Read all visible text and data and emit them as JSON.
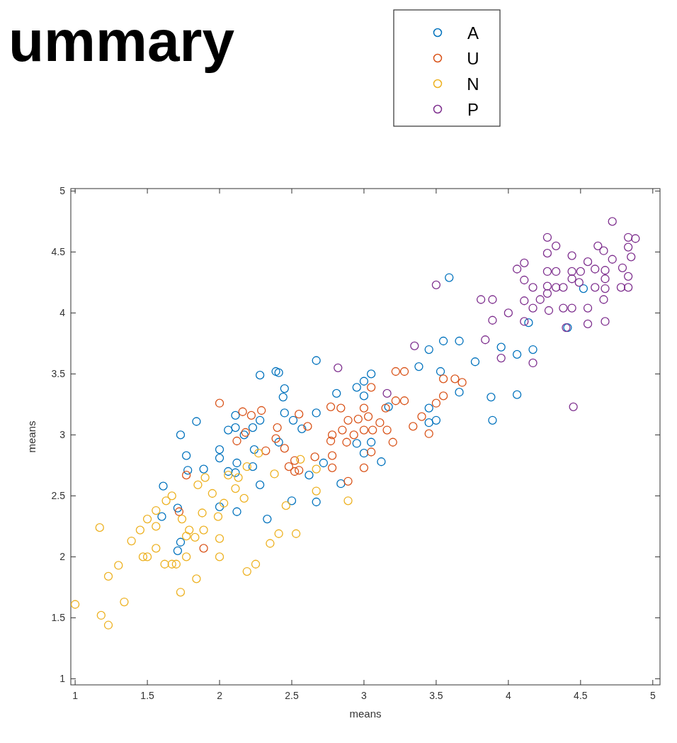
{
  "chart_data": {
    "type": "scatter",
    "title": "ummary",
    "xlabel": "means",
    "ylabel": "means",
    "xlim": [
      0.97,
      5.05
    ],
    "ylim": [
      0.95,
      5.02
    ],
    "xticks": [
      1,
      1.5,
      2,
      2.5,
      3,
      3.5,
      4,
      4.5,
      5
    ],
    "yticks": [
      1,
      1.5,
      2,
      2.5,
      3,
      3.5,
      4,
      4.5,
      5
    ],
    "grid": false,
    "legend": "top",
    "marker": "circle",
    "series": [
      {
        "name": "A",
        "color": "#0072bd",
        "x": [
          1.61,
          1.73,
          1.84,
          1.77,
          1.78,
          1.89,
          2.0,
          2.0,
          2.06,
          2.11,
          2.11,
          2.17,
          2.23,
          2.28,
          2.24,
          2.12,
          2.11,
          2.06,
          2.23,
          2.28,
          2.0,
          2.12,
          1.6,
          1.71,
          1.73,
          1.71,
          2.33,
          2.41,
          2.28,
          2.39,
          2.45,
          2.44,
          2.45,
          2.41,
          2.51,
          2.57,
          2.67,
          2.67,
          2.72,
          2.67,
          2.5,
          2.62,
          2.84,
          2.81,
          2.95,
          2.95,
          3.0,
          3.0,
          3.05,
          3.05,
          3.12,
          3.0,
          3.17,
          3.38,
          3.45,
          3.45,
          3.53,
          3.55,
          3.59,
          3.66,
          3.66,
          3.77,
          3.88,
          3.89,
          3.95,
          4.06,
          4.06,
          4.14,
          4.17,
          4.41,
          4.52,
          3.45,
          3.5
        ],
        "values": [
          2.58,
          3.0,
          3.11,
          2.83,
          2.71,
          2.72,
          2.88,
          2.81,
          3.04,
          3.16,
          3.06,
          3.0,
          3.06,
          3.12,
          2.88,
          2.77,
          2.69,
          2.7,
          2.74,
          2.59,
          2.41,
          2.37,
          2.33,
          2.4,
          2.12,
          2.05,
          2.31,
          3.51,
          3.49,
          3.52,
          3.38,
          3.31,
          3.18,
          2.94,
          3.12,
          3.05,
          3.18,
          3.61,
          2.77,
          2.45,
          2.46,
          2.67,
          2.6,
          3.34,
          3.39,
          2.93,
          3.44,
          3.32,
          3.5,
          2.94,
          2.78,
          2.85,
          3.23,
          3.56,
          3.7,
          3.22,
          3.52,
          3.77,
          4.29,
          3.35,
          3.77,
          3.6,
          3.31,
          3.12,
          3.72,
          3.66,
          3.33,
          3.92,
          3.7,
          3.88,
          4.2,
          3.1,
          3.12
        ]
      },
      {
        "name": "U",
        "color": "#d95319",
        "x": [
          2.0,
          1.77,
          1.72,
          1.89,
          2.12,
          2.18,
          2.22,
          2.29,
          2.16,
          2.4,
          2.39,
          2.32,
          2.45,
          2.48,
          2.52,
          2.52,
          2.55,
          2.55,
          2.61,
          2.66,
          2.78,
          2.77,
          2.78,
          2.78,
          2.84,
          2.85,
          2.88,
          2.89,
          2.93,
          2.96,
          3.0,
          3.0,
          3.03,
          3.05,
          3.06,
          3.05,
          3.11,
          3.15,
          3.16,
          3.2,
          3.22,
          3.22,
          3.28,
          3.28,
          3.34,
          3.4,
          3.45,
          3.5,
          3.55,
          3.55,
          3.63,
          3.68,
          3.0,
          2.89,
          2.77
        ],
        "values": [
          3.26,
          2.67,
          2.37,
          2.07,
          2.95,
          3.02,
          3.16,
          3.2,
          3.19,
          3.06,
          2.97,
          2.87,
          2.89,
          2.74,
          2.7,
          2.79,
          2.71,
          3.17,
          3.07,
          2.82,
          2.83,
          3.23,
          3.0,
          2.73,
          3.22,
          3.04,
          2.94,
          3.12,
          3.0,
          3.13,
          3.22,
          3.04,
          3.15,
          3.39,
          3.04,
          2.86,
          3.1,
          3.22,
          3.04,
          2.94,
          3.28,
          3.52,
          3.52,
          3.28,
          3.07,
          3.15,
          3.01,
          3.26,
          3.32,
          3.46,
          3.46,
          3.43,
          2.73,
          2.62,
          2.95
        ]
      },
      {
        "name": "N",
        "color": "#edb120",
        "x": [
          1.0,
          1.17,
          1.18,
          1.23,
          1.23,
          1.3,
          1.34,
          1.39,
          1.45,
          1.47,
          1.5,
          1.5,
          1.56,
          1.56,
          1.62,
          1.63,
          1.67,
          1.67,
          1.7,
          1.73,
          1.77,
          1.79,
          1.83,
          1.84,
          1.85,
          1.88,
          1.89,
          1.9,
          1.95,
          1.99,
          2.0,
          2.03,
          2.06,
          2.11,
          2.13,
          2.17,
          2.19,
          2.19,
          2.25,
          2.27,
          2.35,
          2.38,
          2.41,
          2.46,
          2.53,
          2.56,
          2.67,
          2.67,
          2.89,
          1.74,
          1.56,
          1.77,
          2.0
        ],
        "values": [
          1.61,
          2.24,
          1.52,
          1.44,
          1.84,
          1.93,
          1.63,
          2.13,
          2.22,
          2.0,
          2.0,
          2.31,
          2.38,
          2.07,
          1.94,
          2.46,
          2.5,
          1.94,
          1.94,
          1.71,
          2.0,
          2.22,
          2.16,
          1.82,
          2.59,
          2.36,
          2.22,
          2.65,
          2.52,
          2.33,
          2.0,
          2.44,
          2.67,
          2.56,
          2.65,
          2.48,
          1.88,
          2.74,
          1.94,
          2.85,
          2.11,
          2.68,
          2.19,
          2.42,
          2.19,
          2.8,
          2.72,
          2.54,
          2.46,
          2.31,
          2.25,
          2.17,
          2.15
        ]
      },
      {
        "name": "P",
        "color": "#7e2f8e",
        "x": [
          2.82,
          3.16,
          3.35,
          3.5,
          3.81,
          3.89,
          3.84,
          3.89,
          3.95,
          4.0,
          4.06,
          4.11,
          4.11,
          4.11,
          4.11,
          4.17,
          4.17,
          4.17,
          4.22,
          4.27,
          4.27,
          4.27,
          4.27,
          4.27,
          4.28,
          4.33,
          4.33,
          4.33,
          4.38,
          4.38,
          4.44,
          4.44,
          4.44,
          4.44,
          4.45,
          4.49,
          4.5,
          4.55,
          4.62,
          4.66,
          4.55,
          4.6,
          4.6,
          4.66,
          4.67,
          4.67,
          4.67,
          4.72,
          4.79,
          4.78,
          4.83,
          4.83,
          4.83,
          4.83,
          4.72,
          4.88,
          4.67,
          4.55,
          4.4,
          4.85
        ],
        "values": [
          3.55,
          3.34,
          3.73,
          4.23,
          4.11,
          4.11,
          3.78,
          3.94,
          3.63,
          4.0,
          4.36,
          4.41,
          4.27,
          4.1,
          3.93,
          4.04,
          3.59,
          4.21,
          4.11,
          4.16,
          4.62,
          4.49,
          4.34,
          4.22,
          4.02,
          4.55,
          4.34,
          4.21,
          4.04,
          4.21,
          4.34,
          4.47,
          4.28,
          4.04,
          3.23,
          4.25,
          4.34,
          4.04,
          4.55,
          4.51,
          4.42,
          4.21,
          4.36,
          4.11,
          4.35,
          4.28,
          4.2,
          4.44,
          4.37,
          4.21,
          4.3,
          4.21,
          4.62,
          4.54,
          4.75,
          4.61,
          3.93,
          3.91,
          3.88,
          4.46
        ]
      }
    ]
  }
}
